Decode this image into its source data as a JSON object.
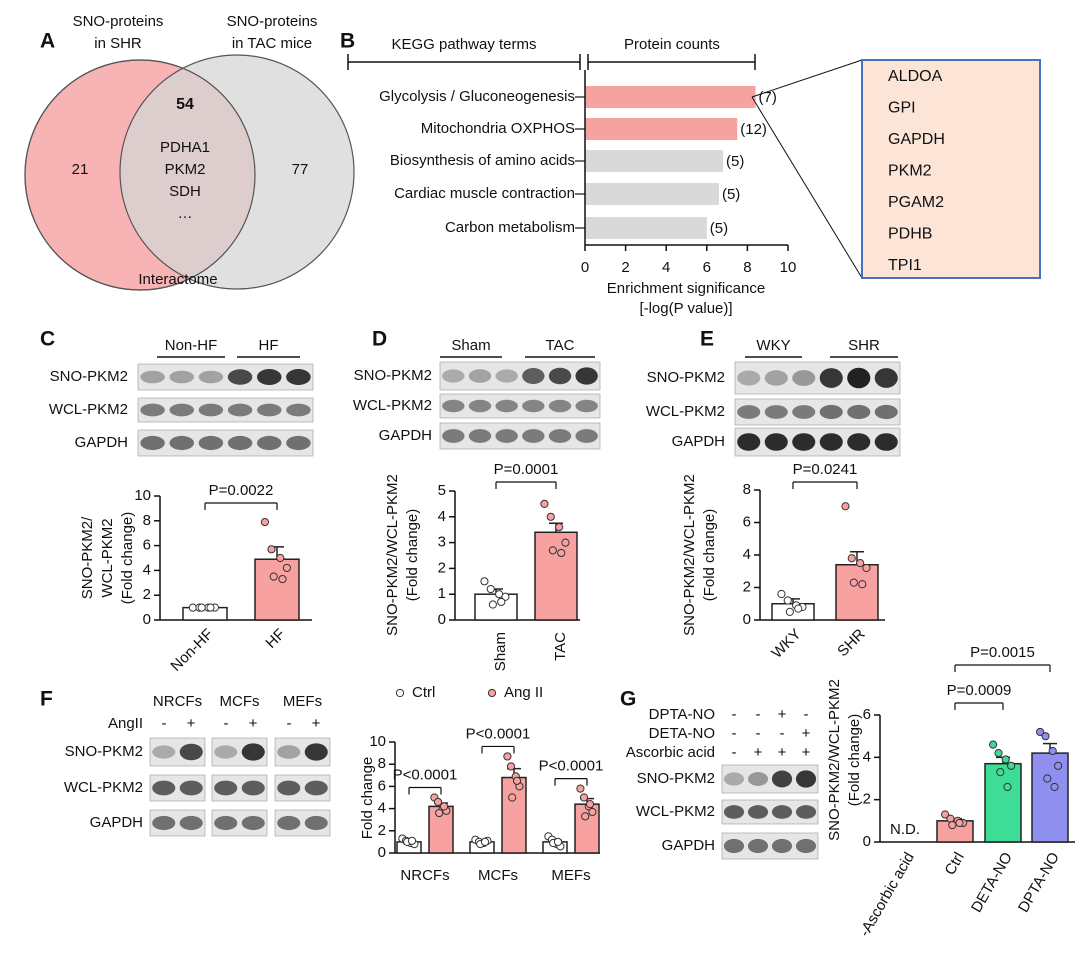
{
  "panel_labels": [
    "A",
    "B",
    "C",
    "D",
    "E",
    "F",
    "G"
  ],
  "venn": {
    "left_label": [
      "SNO-proteins",
      "in SHR"
    ],
    "right_label": [
      "SNO-proteins",
      "in TAC mice"
    ],
    "left_count": 21,
    "overlap_count": 54,
    "right_count": 77,
    "overlap_items": [
      {
        "text": "PDHA1",
        "color": "#111111"
      },
      {
        "text": "PKM2",
        "color": "#d42020"
      },
      {
        "text": "SDH",
        "color": "#111111"
      },
      {
        "text": "…",
        "color": "#111111"
      }
    ],
    "footer": "Interactome",
    "left_color": "#f8b4b4",
    "right_color": "#d6d6d6",
    "overlap_count_color": "#c00000"
  },
  "protein_box": [
    {
      "text": "ALDOA",
      "color": "#111111"
    },
    {
      "text": "GPI",
      "color": "#555555"
    },
    {
      "text": "GAPDH",
      "color": "#111111"
    },
    {
      "text": "PKM2",
      "color": "#e02828"
    },
    {
      "text": "PGAM2",
      "color": "#555555"
    },
    {
      "text": "PDHB",
      "color": "#555555"
    },
    {
      "text": "TPI1",
      "color": "#555555"
    }
  ],
  "blots": {
    "C": {
      "groups": [
        "Non-HF",
        "HF"
      ],
      "rows": [
        "SNO-PKM2",
        "WCL-PKM2",
        "GAPDH"
      ]
    },
    "D": {
      "groups": [
        "Sham",
        "TAC"
      ],
      "rows": [
        "SNO-PKM2",
        "WCL-PKM2",
        "GAPDH"
      ]
    },
    "E": {
      "groups": [
        "WKY",
        "SHR"
      ],
      "rows": [
        "SNO-PKM2",
        "WCL-PKM2",
        "GAPDH"
      ]
    },
    "F": {
      "groups": [
        "NRCFs",
        "MCFs",
        "MEFs"
      ],
      "treatment": {
        "label": "AngII",
        "signs": [
          "-",
          "+",
          "-",
          "+",
          "-",
          "+"
        ]
      },
      "rows": [
        "SNO-PKM2",
        "WCL-PKM2",
        "GAPDH"
      ]
    },
    "G": {
      "treatments": [
        {
          "label": "DPTA-NO",
          "signs": [
            "-",
            "-",
            "+",
            "-"
          ]
        },
        {
          "label": "DETA-NO",
          "signs": [
            "-",
            "-",
            "-",
            "+"
          ]
        },
        {
          "label": "Ascorbic acid",
          "signs": [
            "-",
            "+",
            "+",
            "+"
          ]
        }
      ],
      "rows": [
        "SNO-PKM2",
        "WCL-PKM2",
        "GAPDH"
      ]
    }
  },
  "chart_data": [
    {
      "type": "hbar",
      "headers": [
        "KEGG pathway terms",
        "Protein counts"
      ],
      "categories": [
        "Glycolysis / Gluconeogenesis",
        "Mitochondria OXPHOS",
        "Biosynthesis of amino acids",
        "Cardiac muscle contraction",
        "Carbon metabolism"
      ],
      "values": [
        8.4,
        7.5,
        6.8,
        6.6,
        6.0
      ],
      "colors": [
        "#f7a1a1",
        "#f7a1a1",
        "#d9d9d9",
        "#d9d9d9",
        "#d9d9d9"
      ],
      "count_labels": [
        "(7)",
        "(12)",
        "(5)",
        "(5)",
        "(5)"
      ],
      "xlabel": [
        "Enrichment significance",
        "[-log(P value)]"
      ],
      "xlim": [
        0,
        10
      ],
      "xticks": [
        0,
        2,
        4,
        6,
        8,
        10
      ]
    },
    {
      "type": "bar",
      "categories": [
        "Non-HF",
        "HF"
      ],
      "values": [
        1,
        4.9
      ],
      "errors": [
        0.05,
        1.0
      ],
      "points": [
        [
          1,
          1,
          1,
          1,
          1,
          1
        ],
        [
          7.9,
          5.7,
          5.0,
          4.2,
          3.5,
          3.3
        ]
      ],
      "colors": [
        "#ffffff",
        "#f7a1a1"
      ],
      "ylabel": [
        "SNO-PKM2/",
        "WCL-PKM2",
        "(Fold change)"
      ],
      "ylim": [
        0,
        10
      ],
      "yticks": [
        0,
        2,
        4,
        6,
        8,
        10
      ],
      "pvalues": [
        "P=0.0022"
      ]
    },
    {
      "type": "bar",
      "categories": [
        "Sham",
        "TAC"
      ],
      "values": [
        1,
        3.4
      ],
      "errors": [
        0.2,
        0.35
      ],
      "points": [
        [
          1.5,
          1.2,
          1.0,
          0.9,
          0.6,
          0.7
        ],
        [
          4.5,
          4.0,
          3.6,
          3.0,
          2.7,
          2.6
        ]
      ],
      "colors": [
        "#ffffff",
        "#f7a1a1"
      ],
      "ylabel": [
        "SNO-PKM2/WCL-PKM2",
        "(Fold change)"
      ],
      "ylim": [
        0,
        5
      ],
      "yticks": [
        0,
        1,
        2,
        3,
        4,
        5
      ],
      "pvalues": [
        "P=0.0001"
      ]
    },
    {
      "type": "bar",
      "categories": [
        "WKY",
        "SHR"
      ],
      "values": [
        1,
        3.4
      ],
      "errors": [
        0.3,
        0.8
      ],
      "points": [
        [
          1.6,
          1.2,
          0.9,
          0.8,
          0.5,
          0.7
        ],
        [
          7.0,
          3.8,
          3.5,
          3.2,
          2.3,
          2.2
        ]
      ],
      "colors": [
        "#ffffff",
        "#f7a1a1"
      ],
      "ylabel": [
        "SNO-PKM2/WCL-PKM2",
        "(Fold change)"
      ],
      "ylim": [
        0,
        8
      ],
      "yticks": [
        0,
        2,
        4,
        6,
        8
      ],
      "pvalues": [
        "P=0.0241"
      ]
    },
    {
      "type": "grouped_bar",
      "categories": [
        "NRCFs",
        "MCFs",
        "MEFs"
      ],
      "series": [
        {
          "name": "Ctrl",
          "color": "#ffffff",
          "values": [
            1,
            1,
            1
          ],
          "errors": [
            0.1,
            0.1,
            0.15
          ],
          "points": [
            [
              1.3,
              1.1,
              0.9,
              0.8,
              1.0,
              1.1
            ],
            [
              1.2,
              1.0,
              0.9,
              1.1,
              0.8,
              1.0
            ],
            [
              1.5,
              1.2,
              0.8,
              0.6,
              0.9,
              1.0
            ]
          ]
        },
        {
          "name": "Ang II",
          "color": "#f7a1a1",
          "values": [
            4.2,
            6.8,
            4.4
          ],
          "errors": [
            0.3,
            0.8,
            0.5
          ],
          "points": [
            [
              5.0,
              4.6,
              4.0,
              3.8,
              3.6,
              4.2
            ],
            [
              8.7,
              7.8,
              6.9,
              6.0,
              5.0,
              6.5
            ],
            [
              5.8,
              5.0,
              4.2,
              3.7,
              3.3,
              4.4
            ]
          ]
        }
      ],
      "ylabel": [
        "Fold change"
      ],
      "ylim": [
        0,
        10
      ],
      "yticks": [
        0,
        2,
        4,
        6,
        8,
        10
      ],
      "pvalues": [
        "P<0.0001",
        "P<0.0001",
        "P<0.0001"
      ]
    },
    {
      "type": "bar",
      "categories": [
        "-Ascorbic acid",
        "Ctrl",
        "DETA-NO",
        "DPTA-NO"
      ],
      "values": [
        null,
        1,
        3.7,
        4.2
      ],
      "errors": [
        null,
        0.1,
        0.3,
        0.45
      ],
      "points": [
        [],
        [
          1.3,
          1.1,
          1.0,
          0.9,
          0.8,
          0.9
        ],
        [
          4.6,
          4.2,
          3.9,
          3.6,
          3.3,
          2.6
        ],
        [
          5.2,
          5.0,
          4.3,
          3.6,
          3.0,
          2.6
        ]
      ],
      "colors": [
        "#ffffff",
        "#f7a1a1",
        "#3ddc97",
        "#8f8ff0"
      ],
      "annotations": [
        "N.D."
      ],
      "ylabel": [
        "SNO-PKM2/WCL-PKM2",
        "(Fold change)"
      ],
      "ylim": [
        0,
        6
      ],
      "yticks": [
        0,
        2,
        4,
        6
      ],
      "pvalues": [
        "P=0.0009",
        "P=0.0015"
      ]
    }
  ]
}
